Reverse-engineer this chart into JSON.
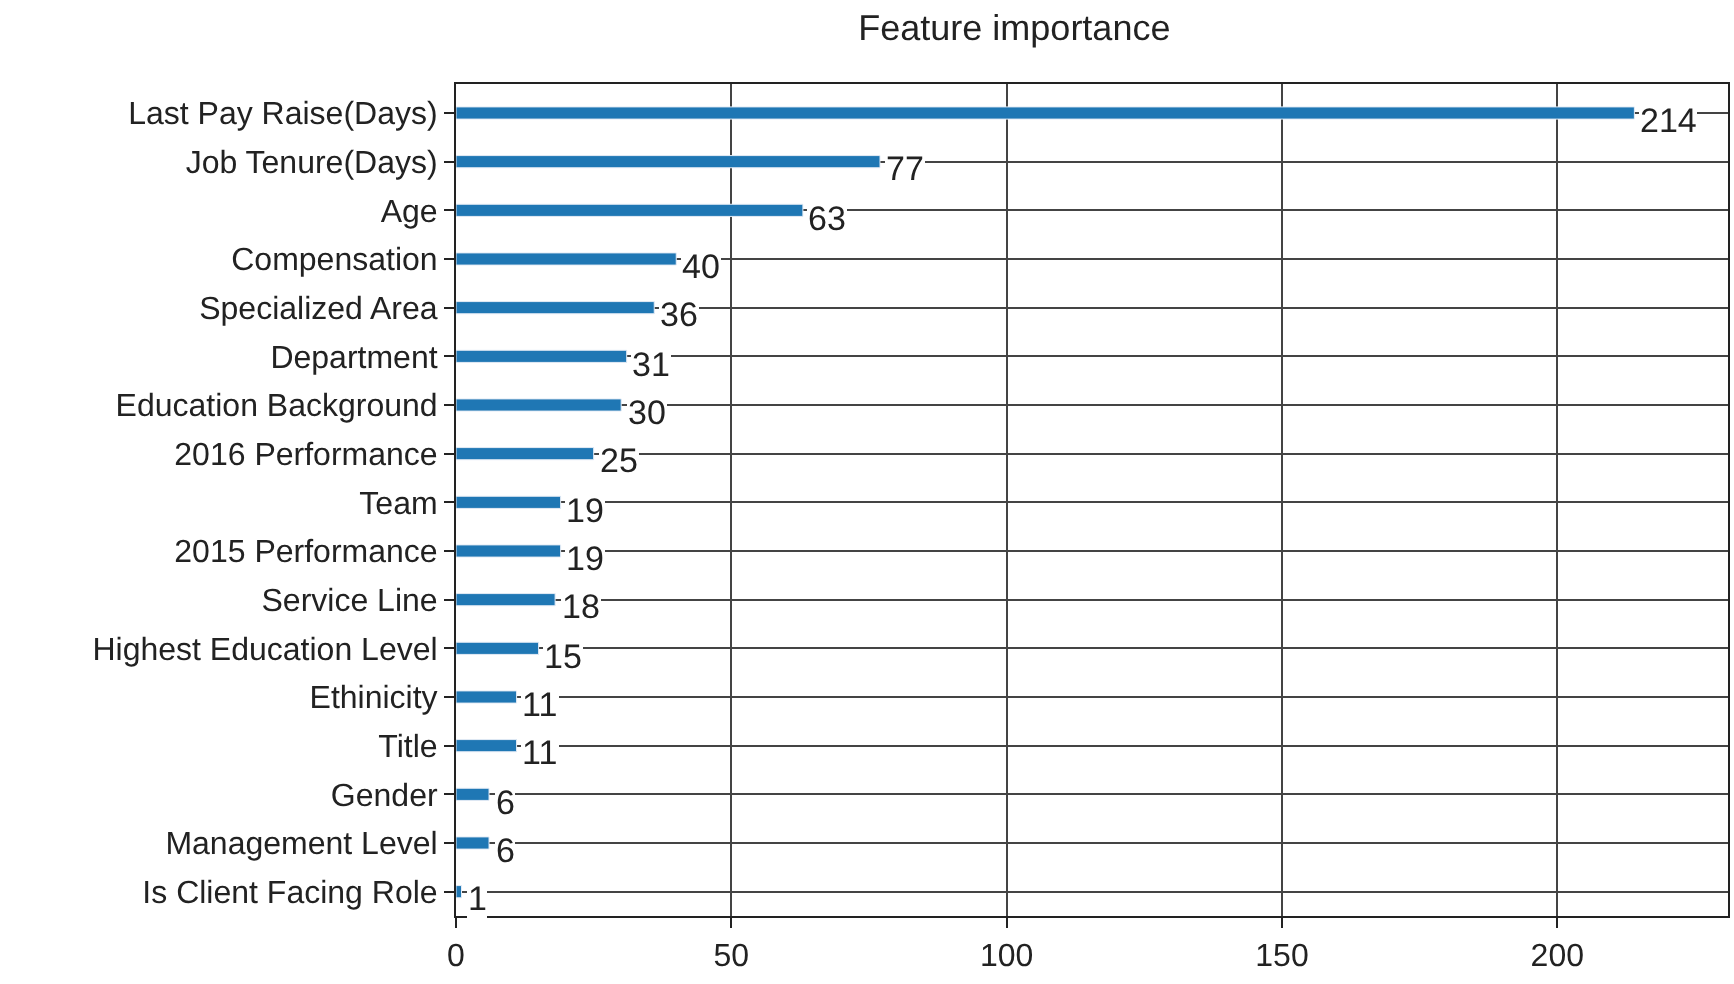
{
  "chart_data": {
    "type": "bar",
    "orientation": "horizontal",
    "title": "Feature importance",
    "categories": [
      "Last Pay Raise(Days)",
      "Job Tenure(Days)",
      "Age",
      "Compensation",
      "Specialized Area",
      "Department",
      "Education Background",
      "2016 Performance",
      "Team",
      "2015 Performance",
      "Service Line",
      "Highest Education Level",
      "Ethinicity",
      "Title",
      "Gender",
      "Management Level",
      "Is Client Facing Role"
    ],
    "values": [
      214,
      77,
      63,
      40,
      36,
      31,
      30,
      25,
      19,
      19,
      18,
      15,
      11,
      11,
      6,
      6,
      1
    ],
    "color": "#1f77b4",
    "xlim": [
      0,
      231
    ],
    "xticks": [
      0,
      50,
      100,
      150,
      200
    ],
    "grid": true,
    "data_labels": true
  }
}
